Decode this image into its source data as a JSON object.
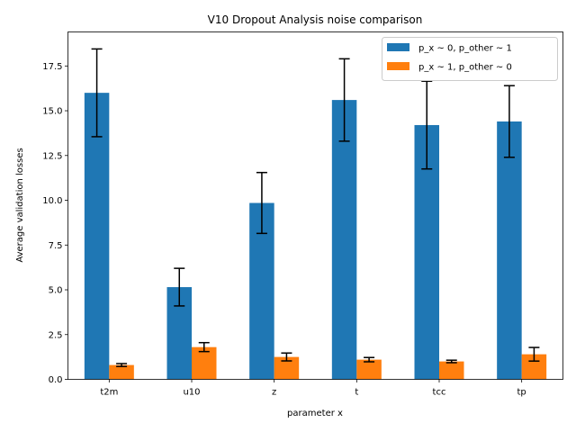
{
  "chart_data": {
    "type": "bar",
    "title": "V10 Dropout Analysis noise comparison",
    "xlabel": "parameter x",
    "ylabel": "Average validation losses",
    "categories": [
      "t2m",
      "u10",
      "z",
      "t",
      "tcc",
      "tp"
    ],
    "ylim": [
      0,
      19.4
    ],
    "yticks": [
      0.0,
      2.5,
      5.0,
      7.5,
      10.0,
      12.5,
      15.0,
      17.5
    ],
    "ytick_labels": [
      "0.0",
      "2.5",
      "5.0",
      "7.5",
      "10.0",
      "12.5",
      "15.0",
      "17.5"
    ],
    "grid": false,
    "legend_position": "top-right",
    "series": [
      {
        "name": "p_x ~ 0, p_other ~ 1",
        "color": "#1f77b4",
        "values": [
          16.0,
          5.15,
          9.85,
          15.6,
          14.2,
          14.4
        ],
        "errors": [
          2.45,
          1.05,
          1.7,
          2.3,
          2.45,
          2.0
        ]
      },
      {
        "name": "p_x ~ 1, p_other ~ 0",
        "color": "#ff7f0e",
        "values": [
          0.8,
          1.8,
          1.25,
          1.1,
          1.0,
          1.4
        ],
        "errors": [
          0.08,
          0.25,
          0.22,
          0.12,
          0.07,
          0.38
        ]
      }
    ]
  }
}
